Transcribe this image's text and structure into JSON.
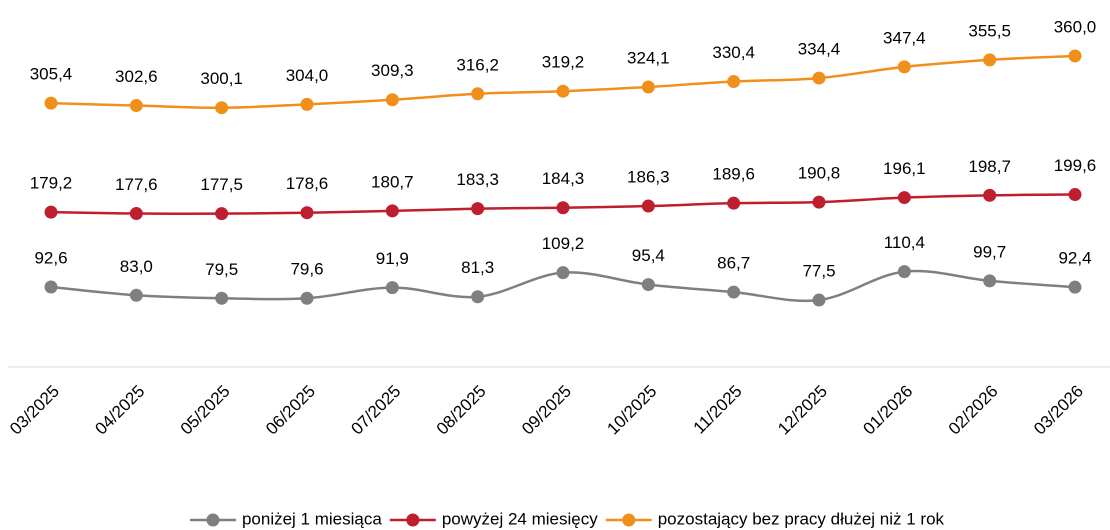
{
  "chart_data": {
    "type": "line",
    "categories": [
      "03/2025",
      "04/2025",
      "05/2025",
      "06/2025",
      "07/2025",
      "08/2025",
      "09/2025",
      "10/2025",
      "11/2025",
      "12/2025",
      "01/2026",
      "02/2026",
      "03/2026"
    ],
    "series": [
      {
        "name": "poniżej 1 miesiąca",
        "color": "#7f7f7f",
        "values": [
          92.6,
          83.0,
          79.5,
          79.6,
          91.9,
          81.3,
          109.2,
          95.4,
          86.7,
          77.5,
          110.4,
          99.7,
          92.4
        ],
        "value_labels": [
          "92,6",
          "83,0",
          "79,5",
          "79,6",
          "91,9",
          "81,3",
          "109,2",
          "95,4",
          "86,7",
          "77,5",
          "110,4",
          "99,7",
          "92,4"
        ]
      },
      {
        "name": "powyżej 24 miesięcy",
        "color": "#be1e2d",
        "values": [
          179.2,
          177.6,
          177.5,
          178.6,
          180.7,
          183.3,
          184.3,
          186.3,
          189.6,
          190.8,
          196.1,
          198.7,
          199.6
        ],
        "value_labels": [
          "179,2",
          "177,6",
          "177,5",
          "178,6",
          "180,7",
          "183,3",
          "184,3",
          "186,3",
          "189,6",
          "190,8",
          "196,1",
          "198,7",
          "199,6"
        ]
      },
      {
        "name": "pozostający bez pracy dłużej niż 1 rok",
        "color": "#f0901a",
        "values": [
          305.4,
          302.6,
          300.1,
          304.0,
          309.3,
          316.2,
          319.2,
          324.1,
          330.4,
          334.4,
          347.4,
          355.5,
          360.0
        ],
        "value_labels": [
          "305,4",
          "302,6",
          "300,1",
          "304,0",
          "309,3",
          "316,2",
          "319,2",
          "324,1",
          "330,4",
          "334,4",
          "347,4",
          "355,5",
          "360,0"
        ]
      }
    ],
    "ylim": [
      0,
      400
    ],
    "grid": false,
    "legend": "bottom"
  }
}
